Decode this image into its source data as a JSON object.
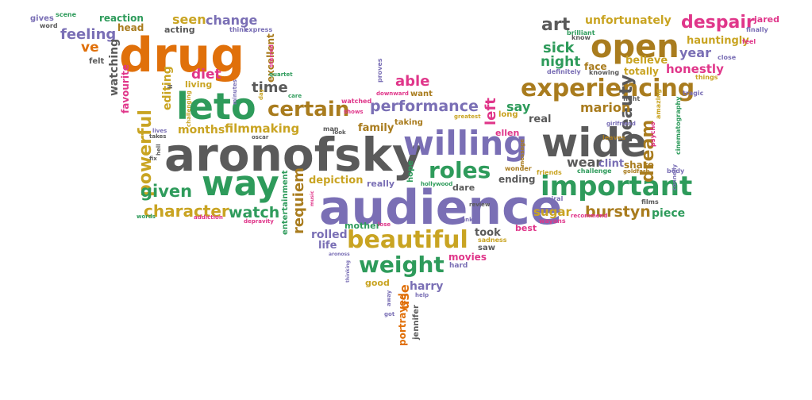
{
  "word_cloud": {
    "palette": {
      "orange": "#e0700a",
      "green": "#2e9b5b",
      "gray": "#5a5a5a",
      "purple": "#7a6fb5",
      "gold": "#c9a422",
      "pink": "#e0368a",
      "brown": "#a97c1e",
      "teal": "#3a8f7a"
    },
    "words": [
      {
        "text": "aronofsky",
        "color": "#5a5a5a"
      },
      {
        "text": "audience",
        "color": "#7a6fb5"
      },
      {
        "text": "drug",
        "color": "#e0700a"
      },
      {
        "text": "willing",
        "color": "#7a6fb5"
      },
      {
        "text": "wide",
        "color": "#5a5a5a"
      },
      {
        "text": "way",
        "color": "#2e9b5b"
      },
      {
        "text": "leto",
        "color": "#2e9b5b"
      },
      {
        "text": "open",
        "color": "#a97c1e"
      },
      {
        "text": "experiencing",
        "color": "#a97c1e"
      },
      {
        "text": "important",
        "color": "#2e9b5b"
      },
      {
        "text": "beautiful",
        "color": "#c9a422"
      },
      {
        "text": "weight",
        "color": "#2e9b5b"
      },
      {
        "text": "roles",
        "color": "#2e9b5b"
      },
      {
        "text": "certain",
        "color": "#a97c1e"
      },
      {
        "text": "powerful",
        "color": "#c9a422"
      },
      {
        "text": "performance",
        "color": "#7a6fb5"
      },
      {
        "text": "character",
        "color": "#c9a422"
      },
      {
        "text": "given",
        "color": "#2e9b5b"
      },
      {
        "text": "watch",
        "color": "#2e9b5b"
      },
      {
        "text": "requiem",
        "color": "#a97c1e"
      },
      {
        "text": "despair",
        "color": "#e0368a"
      },
      {
        "text": "burstyn",
        "color": "#a97c1e"
      },
      {
        "text": "beauty",
        "color": "#5a5a5a"
      },
      {
        "text": "dream",
        "color": "#a97c1e"
      },
      {
        "text": "feeling",
        "color": "#7a6fb5"
      },
      {
        "text": "able",
        "color": "#e0368a"
      },
      {
        "text": "honestly",
        "color": "#e0368a"
      },
      {
        "text": "year",
        "color": "#7a6fb5"
      },
      {
        "text": "sick",
        "color": "#2e9b5b"
      },
      {
        "text": "night",
        "color": "#2e9b5b"
      },
      {
        "text": "art",
        "color": "#5a5a5a"
      },
      {
        "text": "diet",
        "color": "#e0368a"
      },
      {
        "text": "time",
        "color": "#5a5a5a"
      },
      {
        "text": "say",
        "color": "#2e9b5b"
      },
      {
        "text": "marion",
        "color": "#a97c1e"
      },
      {
        "text": "left",
        "color": "#e0368a"
      },
      {
        "text": "wear",
        "color": "#5a5a5a"
      },
      {
        "text": "clint",
        "color": "#7a6fb5"
      },
      {
        "text": "change",
        "color": "#7a6fb5"
      },
      {
        "text": "seen",
        "color": "#c9a422"
      },
      {
        "text": "editing",
        "color": "#c9a422"
      },
      {
        "text": "filmmaking",
        "color": "#c9a422"
      },
      {
        "text": "months",
        "color": "#c9a422"
      },
      {
        "text": "family",
        "color": "#a97c1e"
      },
      {
        "text": "depiction",
        "color": "#c9a422"
      },
      {
        "text": "sugar",
        "color": "#c9a422"
      },
      {
        "text": "use",
        "color": "#e0700a"
      },
      {
        "text": "harry",
        "color": "#7a6fb5"
      },
      {
        "text": "took",
        "color": "#5a5a5a"
      },
      {
        "text": "rolled",
        "color": "#7a6fb5"
      },
      {
        "text": "life",
        "color": "#7a6fb5"
      },
      {
        "text": "movies",
        "color": "#e0368a"
      },
      {
        "text": "piece",
        "color": "#2e9b5b"
      },
      {
        "text": "unfortunately",
        "color": "#c9a422"
      },
      {
        "text": "believe",
        "color": "#c9a422"
      },
      {
        "text": "totally",
        "color": "#c9a422"
      },
      {
        "text": "face",
        "color": "#a97c1e"
      },
      {
        "text": "real",
        "color": "#5a5a5a"
      },
      {
        "text": "ve",
        "color": "#e0700a"
      },
      {
        "text": "reaction",
        "color": "#2e9b5b"
      },
      {
        "text": "acting",
        "color": "#5a5a5a"
      },
      {
        "text": "excellent",
        "color": "#a97c1e"
      },
      {
        "text": "watching",
        "color": "#5a5a5a"
      },
      {
        "text": "entertainment",
        "color": "#2e9b5b"
      },
      {
        "text": "portrayed",
        "color": "#e0700a"
      },
      {
        "text": "jennifer",
        "color": "#5a5a5a"
      },
      {
        "text": "mother",
        "color": "#2e9b5b"
      },
      {
        "text": "hauntingly",
        "color": "#c9a422"
      },
      {
        "text": "jared",
        "color": "#e0368a"
      },
      {
        "text": "gives",
        "color": "#7a6fb5"
      },
      {
        "text": "head",
        "color": "#a97c1e"
      },
      {
        "text": "favourite",
        "color": "#e0368a"
      },
      {
        "text": "ending",
        "color": "#5a5a5a"
      },
      {
        "text": "dare",
        "color": "#5a5a5a"
      },
      {
        "text": "best",
        "color": "#e0368a"
      },
      {
        "text": "share",
        "color": "#a97c1e"
      },
      {
        "text": "hope",
        "color": "#2e9b5b"
      },
      {
        "text": "really",
        "color": "#7a6fb5"
      },
      {
        "text": "ellen",
        "color": "#e0368a"
      },
      {
        "text": "long",
        "color": "#c9a422"
      },
      {
        "text": "taking",
        "color": "#a97c1e"
      },
      {
        "text": "want",
        "color": "#a97c1e"
      },
      {
        "text": "living",
        "color": "#c9a422"
      },
      {
        "text": "felt",
        "color": "#5a5a5a"
      },
      {
        "text": "good",
        "color": "#c9a422"
      },
      {
        "text": "saw",
        "color": "#5a5a5a"
      },
      {
        "text": "hard",
        "color": "#7a6fb5"
      },
      {
        "text": "scene",
        "color": "#2e9b5b"
      },
      {
        "text": "word",
        "color": "#5a5a5a"
      },
      {
        "text": "think",
        "color": "#7a6fb5"
      },
      {
        "text": "express",
        "color": "#7a6fb5"
      },
      {
        "text": "brilliant",
        "color": "#2e9b5b"
      },
      {
        "text": "finally",
        "color": "#7a6fb5"
      },
      {
        "text": "feel",
        "color": "#e0368a"
      },
      {
        "text": "close",
        "color": "#7a6fb5"
      },
      {
        "text": "things",
        "color": "#c9a422"
      },
      {
        "text": "know",
        "color": "#5a5a5a"
      },
      {
        "text": "definitely",
        "color": "#7a6fb5"
      },
      {
        "text": "knowing",
        "color": "#5a5a5a"
      },
      {
        "text": "fight",
        "color": "#5a5a5a"
      },
      {
        "text": "tragic",
        "color": "#7a6fb5"
      },
      {
        "text": "psycho",
        "color": "#e0368a"
      },
      {
        "text": "cinematography",
        "color": "#2e9b5b"
      },
      {
        "text": "amazing",
        "color": "#c9a422"
      },
      {
        "text": "girlfriend",
        "color": "#7a6fb5"
      },
      {
        "text": "leaves",
        "color": "#a97c1e"
      },
      {
        "text": "challenge",
        "color": "#2e9b5b"
      },
      {
        "text": "goldfarb",
        "color": "#a97c1e"
      },
      {
        "text": "body",
        "color": "#7a6fb5"
      },
      {
        "text": "connelly",
        "color": "#7a6fb5"
      },
      {
        "text": "films",
        "color": "#5a5a5a"
      },
      {
        "text": "recommend",
        "color": "#e0368a"
      },
      {
        "text": "wayans",
        "color": "#e0368a"
      },
      {
        "text": "spiral",
        "color": "#7a6fb5"
      },
      {
        "text": "friends",
        "color": "#c9a422"
      },
      {
        "text": "wonder",
        "color": "#a97c1e"
      },
      {
        "text": "message",
        "color": "#a97c1e"
      },
      {
        "text": "hollywood",
        "color": "#2e9b5b"
      },
      {
        "text": "review",
        "color": "#5a5a5a"
      },
      {
        "text": "ranks",
        "color": "#7a6fb5"
      },
      {
        "text": "sadness",
        "color": "#c9a422"
      },
      {
        "text": "greatest",
        "color": "#c9a422"
      },
      {
        "text": "downward",
        "color": "#e0368a"
      },
      {
        "text": "proves",
        "color": "#7a6fb5"
      },
      {
        "text": "watched",
        "color": "#e0368a"
      },
      {
        "text": "shows",
        "color": "#e0368a"
      },
      {
        "text": "look",
        "color": "#5a5a5a"
      },
      {
        "text": "man",
        "color": "#5a5a5a"
      },
      {
        "text": "oscar",
        "color": "#5a5a5a"
      },
      {
        "text": "care",
        "color": "#2e9b5b"
      },
      {
        "text": "day",
        "color": "#c9a422"
      },
      {
        "text": "minutes",
        "color": "#7a6fb5"
      },
      {
        "text": "quartet",
        "color": "#2e9b5b"
      },
      {
        "text": "starred",
        "color": "#e0368a"
      },
      {
        "text": "challenging",
        "color": "#c9a422"
      },
      {
        "text": "lives",
        "color": "#7a6fb5"
      },
      {
        "text": "takes",
        "color": "#5a5a5a"
      },
      {
        "text": "fix",
        "color": "#5a5a5a"
      },
      {
        "text": "hell",
        "color": "#5a5a5a"
      },
      {
        "text": "ll",
        "color": "#5a5a5a"
      },
      {
        "text": "words",
        "color": "#2e9b5b"
      },
      {
        "text": "addiction",
        "color": "#e0368a"
      },
      {
        "text": "depravity",
        "color": "#e0368a"
      },
      {
        "text": "lose",
        "color": "#e0368a"
      },
      {
        "text": "music",
        "color": "#e0368a"
      },
      {
        "text": "thinking",
        "color": "#7a6fb5"
      },
      {
        "text": "away",
        "color": "#7a6fb5"
      },
      {
        "text": "got",
        "color": "#7a6fb5"
      },
      {
        "text": "help",
        "color": "#7a6fb5"
      },
      {
        "text": "aronoss",
        "color": "#7a6fb5"
      }
    ]
  }
}
